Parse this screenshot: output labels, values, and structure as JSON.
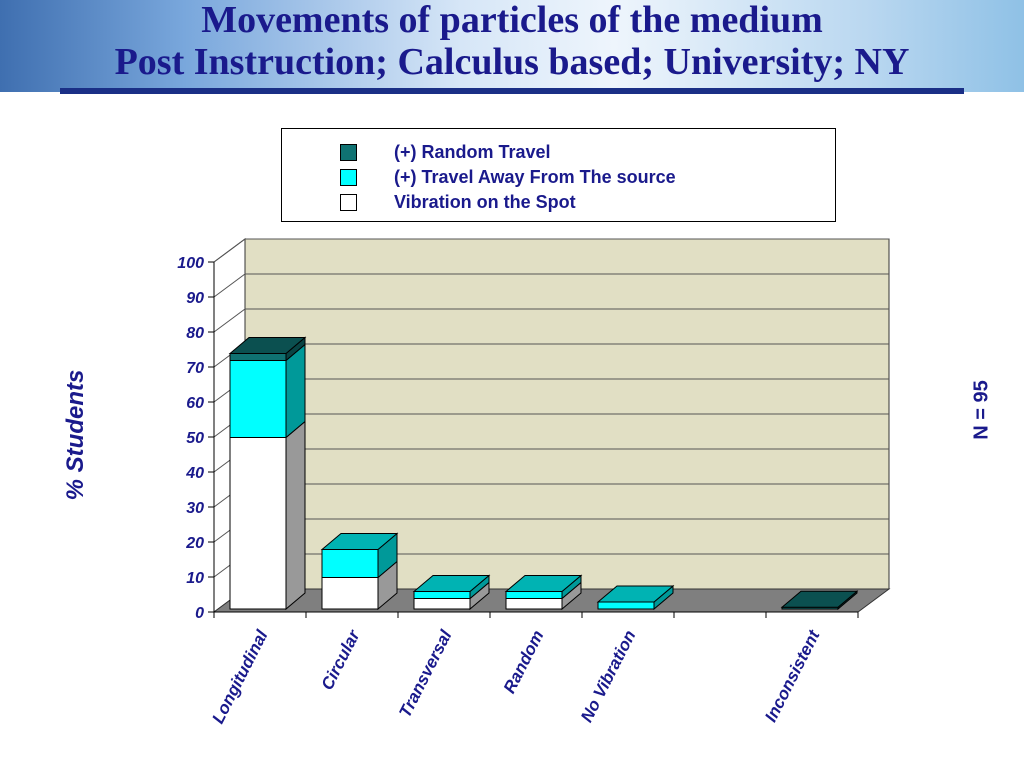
{
  "title_line1": "Movements of particles of the medium",
  "title_line2": "Post Instruction; Calculus based; University; NY",
  "sample_size_label": "N = 95",
  "colors": {
    "random_travel": "#0f7272",
    "travel_away": "#00ffff",
    "vibration": "#ffffff",
    "plot_wall": "#e1dfc4",
    "floor": "#7f7f7f",
    "text": "#1a1a8c"
  },
  "chart_data": {
    "type": "bar",
    "stacked": true,
    "categories": [
      "Longitudinal",
      "Circular",
      "Transversal",
      "Random",
      "No Vibration",
      "",
      "Inconsistent"
    ],
    "series": [
      {
        "name": "Vibration on the Spot",
        "values": [
          49,
          9,
          3,
          3,
          0,
          0,
          0
        ]
      },
      {
        "name": "(+) Travel Away From The source",
        "values": [
          22,
          8,
          2,
          2,
          2,
          0,
          0
        ]
      },
      {
        "name": "(+) Random Travel",
        "values": [
          2,
          0,
          0,
          0,
          0,
          0,
          0.5
        ]
      }
    ],
    "legend": [
      "(+) Random Travel",
      "(+) Travel Away From The source",
      "Vibration on the Spot"
    ],
    "ylabel": "% Students",
    "yticks": [
      "0",
      "10",
      "20",
      "30",
      "40",
      "50",
      "60",
      "70",
      "80",
      "90",
      "100"
    ],
    "ylim": [
      0,
      100
    ],
    "grid": true,
    "legend_position": "top"
  }
}
